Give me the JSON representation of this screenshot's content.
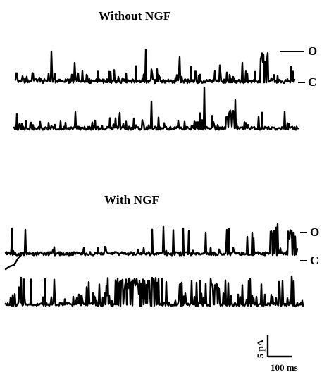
{
  "panels": {
    "without": {
      "title": "Without NGF",
      "open_label": "O",
      "closed_label": "C"
    },
    "with": {
      "title": "With NGF",
      "open_label": "O",
      "closed_label": "C"
    }
  },
  "scale_bar": {
    "current": "5 pA",
    "time": "100 ms"
  }
}
